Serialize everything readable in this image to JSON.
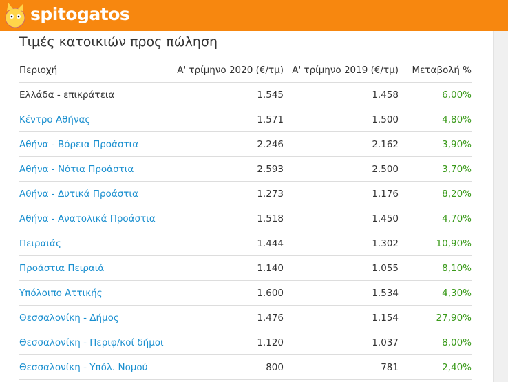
{
  "header": {
    "logo": "spitogatos"
  },
  "title": "Τιμές κατοικιών προς πώληση",
  "table": {
    "columns": [
      "Περιοχή",
      "Α' τρίμηνο 2020 (€/τμ)",
      "Α' τρίμηνο 2019 (€/τμ)",
      "Μεταβολή %"
    ],
    "rows": [
      [
        "Ελλάδα - επικράτεια",
        "1.545",
        "1.458",
        "6,00%"
      ],
      [
        "Κέντρο Αθήνας",
        "1.571",
        "1.500",
        "4,80%"
      ],
      [
        "Αθήνα - Βόρεια Προάστια",
        "2.246",
        "2.162",
        "3,90%"
      ],
      [
        "Αθήνα - Νότια Προάστια",
        "2.593",
        "2.500",
        "3,70%"
      ],
      [
        "Αθήνα - Δυτικά Προάστια",
        "1.273",
        "1.176",
        "8,20%"
      ],
      [
        "Αθήνα - Ανατολικά Προάστια",
        "1.518",
        "1.450",
        "4,70%"
      ],
      [
        "Πειραιάς",
        "1.444",
        "1.302",
        "10,90%"
      ],
      [
        "Προάστια Πειραιά",
        "1.140",
        "1.055",
        "8,10%"
      ],
      [
        "Υπόλοιπο Αττικής",
        "1.600",
        "1.534",
        "4,30%"
      ],
      [
        "Θεσσαλονίκη - Δήμος",
        "1.476",
        "1.154",
        "27,90%"
      ],
      [
        "Θεσσαλονίκη - Περιφ/κοί δήμοι",
        "1.120",
        "1.037",
        "8,00%"
      ],
      [
        "Θεσσαλονίκη - Υπόλ. Νομού",
        "800",
        "781",
        "2,40%"
      ]
    ]
  }
}
